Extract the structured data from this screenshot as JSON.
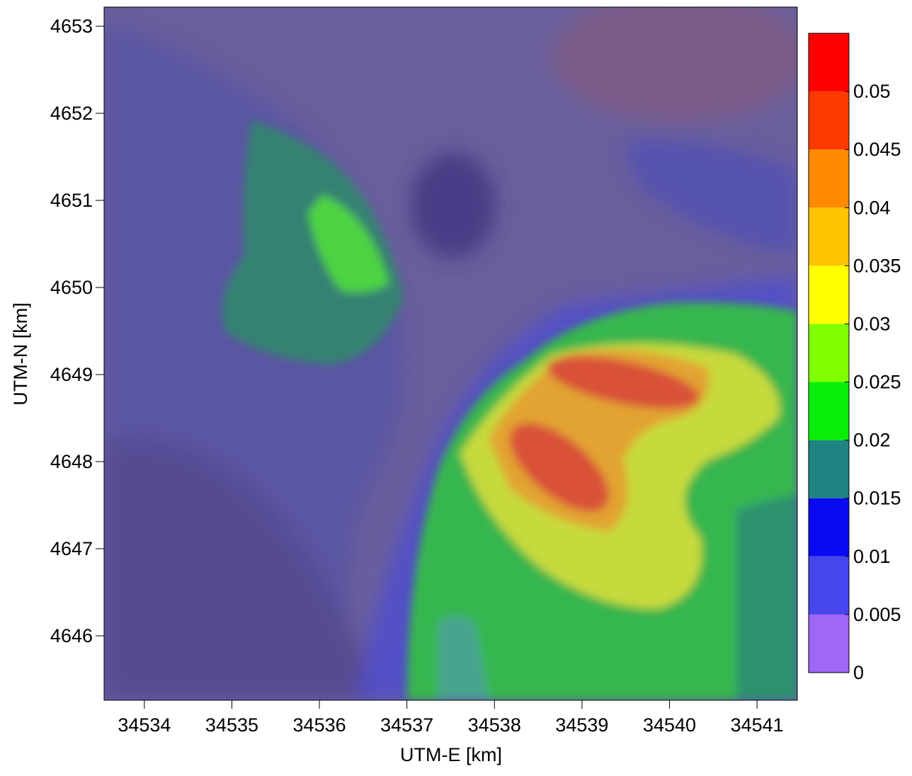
{
  "chart_data": {
    "type": "contour",
    "xlabel": "UTM-E [km]",
    "ylabel": "UTM-N [km]",
    "xlim": [
      34533.54,
      34541.46
    ],
    "xticks": [
      34534,
      34535,
      34536,
      34537,
      34538,
      34539,
      34540,
      34541
    ],
    "ylim": [
      4645.26,
      4653.22
    ],
    "yticks": [
      4646,
      4647,
      4648,
      4649,
      4650,
      4651,
      4652,
      4653
    ],
    "colorbar": {
      "lim": [
        0,
        0.055
      ],
      "levels": [
        0,
        0.005,
        0.01,
        0.015,
        0.02,
        0.025,
        0.03,
        0.035,
        0.04,
        0.045,
        0.05
      ],
      "colors": [
        "#a066f4",
        "#4646ee",
        "#0a0af2",
        "#1f8383",
        "#08ee08",
        "#80ff00",
        "#ffff00",
        "#ffc400",
        "#ff8a00",
        "#ff3a00",
        "#ff0000"
      ]
    }
  }
}
